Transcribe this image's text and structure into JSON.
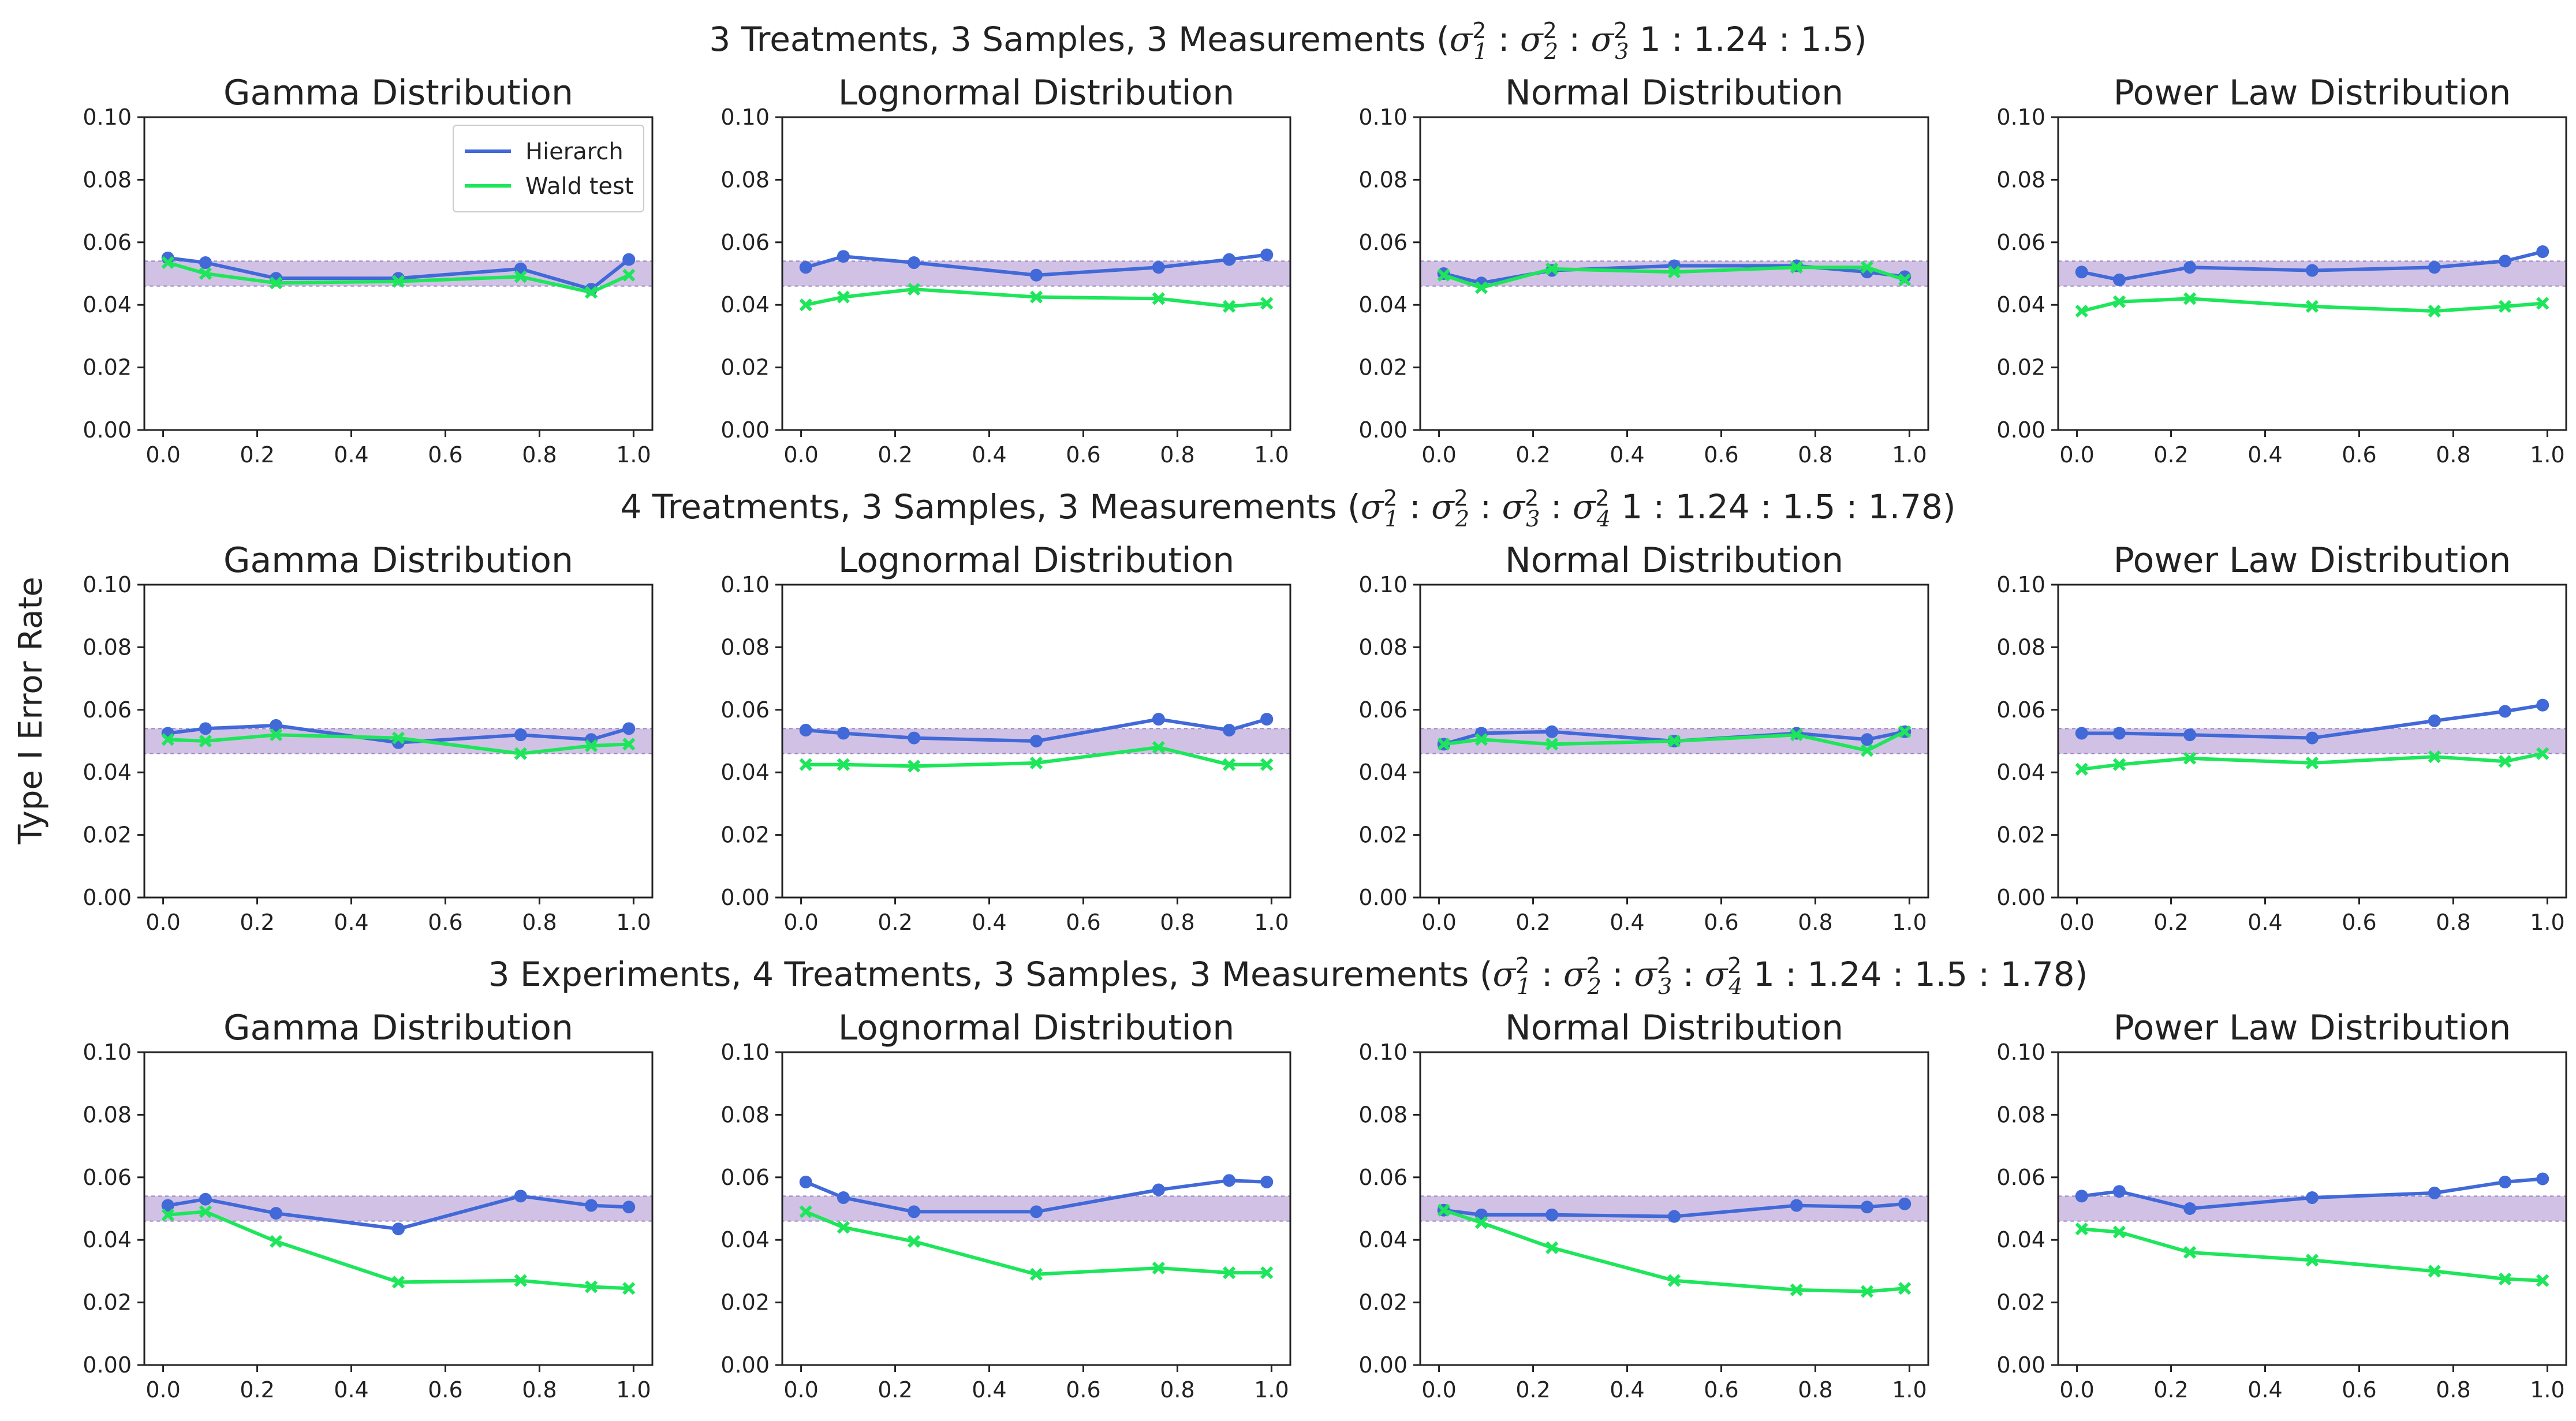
{
  "figure": {
    "ylabel": "Type I Error Rate",
    "row_titles": [
      {
        "prefix": "3 Treatments, 3 Samples, 3 Measurements (",
        "vars": [
          "1",
          "2",
          "3"
        ],
        "ratio": "1 : 1.24 : 1.5"
      },
      {
        "prefix": "4 Treatments, 3 Samples, 3 Measurements (",
        "vars": [
          "1",
          "2",
          "3",
          "4"
        ],
        "ratio": "1 : 1.24 : 1.5 : 1.78"
      },
      {
        "prefix": "3 Experiments, 4 Treatments, 3 Samples, 3 Measurements (",
        "vars": [
          "1",
          "2",
          "3",
          "4"
        ],
        "ratio": "1 : 1.24 : 1.5 : 1.78"
      }
    ],
    "legend": {
      "items": [
        "Hierarch",
        "Wald test"
      ],
      "location": "upper right of first panel"
    },
    "colors": {
      "hierarch": "#4169d8",
      "wald": "#1ee65a",
      "band": "#b39ad4",
      "band_edge": "#9a86c0"
    }
  },
  "chart_data": [
    {
      "type": "line",
      "row": 0,
      "title": "Gamma Distribution",
      "xlim": [
        -0.04,
        1.04
      ],
      "ylim": [
        0,
        0.1
      ],
      "x": [
        0.01,
        0.09,
        0.24,
        0.5,
        0.76,
        0.91,
        0.99
      ],
      "band": [
        0.046,
        0.054
      ],
      "series": [
        {
          "name": "Hierarch",
          "values": [
            0.055,
            0.0535,
            0.0485,
            0.0485,
            0.0515,
            0.045,
            0.0545
          ]
        },
        {
          "name": "Wald test",
          "values": [
            0.0535,
            0.05,
            0.047,
            0.0475,
            0.049,
            0.044,
            0.0495
          ]
        }
      ]
    },
    {
      "type": "line",
      "row": 0,
      "title": "Lognormal Distribution",
      "xlim": [
        -0.04,
        1.04
      ],
      "ylim": [
        0,
        0.1
      ],
      "x": [
        0.01,
        0.09,
        0.24,
        0.5,
        0.76,
        0.91,
        0.99
      ],
      "band": [
        0.046,
        0.054
      ],
      "series": [
        {
          "name": "Hierarch",
          "values": [
            0.052,
            0.0555,
            0.0535,
            0.0495,
            0.052,
            0.0545,
            0.056
          ]
        },
        {
          "name": "Wald test",
          "values": [
            0.04,
            0.0425,
            0.045,
            0.0425,
            0.042,
            0.0395,
            0.0405
          ]
        }
      ]
    },
    {
      "type": "line",
      "row": 0,
      "title": "Normal Distribution",
      "xlim": [
        -0.04,
        1.04
      ],
      "ylim": [
        0,
        0.1
      ],
      "x": [
        0.01,
        0.09,
        0.24,
        0.5,
        0.76,
        0.91,
        0.99
      ],
      "band": [
        0.046,
        0.054
      ],
      "series": [
        {
          "name": "Hierarch",
          "values": [
            0.05,
            0.047,
            0.051,
            0.0525,
            0.0525,
            0.0505,
            0.049
          ]
        },
        {
          "name": "Wald test",
          "values": [
            0.0495,
            0.0455,
            0.0515,
            0.0505,
            0.052,
            0.052,
            0.048
          ]
        }
      ]
    },
    {
      "type": "line",
      "row": 0,
      "title": "Power Law Distribution",
      "xlim": [
        -0.04,
        1.04
      ],
      "ylim": [
        0,
        0.1
      ],
      "x": [
        0.01,
        0.09,
        0.24,
        0.5,
        0.76,
        0.91,
        0.99
      ],
      "band": [
        0.046,
        0.054
      ],
      "series": [
        {
          "name": "Hierarch",
          "values": [
            0.0505,
            0.048,
            0.052,
            0.051,
            0.052,
            0.054,
            0.057
          ]
        },
        {
          "name": "Wald test",
          "values": [
            0.038,
            0.041,
            0.042,
            0.0395,
            0.038,
            0.0395,
            0.0405
          ]
        }
      ]
    },
    {
      "type": "line",
      "row": 1,
      "title": "Gamma Distribution",
      "xlim": [
        -0.04,
        1.04
      ],
      "ylim": [
        0,
        0.1
      ],
      "x": [
        0.01,
        0.09,
        0.24,
        0.5,
        0.76,
        0.91,
        0.99
      ],
      "band": [
        0.046,
        0.054
      ],
      "series": [
        {
          "name": "Hierarch",
          "values": [
            0.0525,
            0.054,
            0.055,
            0.0495,
            0.052,
            0.0505,
            0.054
          ]
        },
        {
          "name": "Wald test",
          "values": [
            0.0505,
            0.05,
            0.052,
            0.051,
            0.046,
            0.0485,
            0.049
          ]
        }
      ]
    },
    {
      "type": "line",
      "row": 1,
      "title": "Lognormal Distribution",
      "xlim": [
        -0.04,
        1.04
      ],
      "ylim": [
        0,
        0.1
      ],
      "x": [
        0.01,
        0.09,
        0.24,
        0.5,
        0.76,
        0.91,
        0.99
      ],
      "band": [
        0.046,
        0.054
      ],
      "series": [
        {
          "name": "Hierarch",
          "values": [
            0.0535,
            0.0525,
            0.051,
            0.05,
            0.057,
            0.0535,
            0.057
          ]
        },
        {
          "name": "Wald test",
          "values": [
            0.0425,
            0.0425,
            0.042,
            0.043,
            0.048,
            0.0425,
            0.0425
          ]
        }
      ]
    },
    {
      "type": "line",
      "row": 1,
      "title": "Normal Distribution",
      "xlim": [
        -0.04,
        1.04
      ],
      "ylim": [
        0,
        0.1
      ],
      "x": [
        0.01,
        0.09,
        0.24,
        0.5,
        0.76,
        0.91,
        0.99
      ],
      "band": [
        0.046,
        0.054
      ],
      "series": [
        {
          "name": "Hierarch",
          "values": [
            0.049,
            0.0525,
            0.053,
            0.05,
            0.0525,
            0.0505,
            0.053
          ]
        },
        {
          "name": "Wald test",
          "values": [
            0.049,
            0.0505,
            0.049,
            0.05,
            0.052,
            0.047,
            0.053
          ]
        }
      ]
    },
    {
      "type": "line",
      "row": 1,
      "title": "Power Law Distribution",
      "xlim": [
        -0.04,
        1.04
      ],
      "ylim": [
        0,
        0.1
      ],
      "x": [
        0.01,
        0.09,
        0.24,
        0.5,
        0.76,
        0.91,
        0.99
      ],
      "band": [
        0.046,
        0.054
      ],
      "series": [
        {
          "name": "Hierarch",
          "values": [
            0.0525,
            0.0525,
            0.052,
            0.051,
            0.0565,
            0.0595,
            0.0615
          ]
        },
        {
          "name": "Wald test",
          "values": [
            0.041,
            0.0425,
            0.0445,
            0.043,
            0.045,
            0.0435,
            0.046
          ]
        }
      ]
    },
    {
      "type": "line",
      "row": 2,
      "title": "Gamma Distribution",
      "xlim": [
        -0.04,
        1.04
      ],
      "ylim": [
        0,
        0.1
      ],
      "x": [
        0.01,
        0.09,
        0.24,
        0.5,
        0.76,
        0.91,
        0.99
      ],
      "band": [
        0.046,
        0.054
      ],
      "series": [
        {
          "name": "Hierarch",
          "values": [
            0.051,
            0.053,
            0.0485,
            0.0435,
            0.054,
            0.051,
            0.0505
          ]
        },
        {
          "name": "Wald test",
          "values": [
            0.048,
            0.049,
            0.0395,
            0.0265,
            0.027,
            0.025,
            0.0245
          ]
        }
      ]
    },
    {
      "type": "line",
      "row": 2,
      "title": "Lognormal Distribution",
      "xlim": [
        -0.04,
        1.04
      ],
      "ylim": [
        0,
        0.1
      ],
      "x": [
        0.01,
        0.09,
        0.24,
        0.5,
        0.76,
        0.91,
        0.99
      ],
      "band": [
        0.046,
        0.054
      ],
      "series": [
        {
          "name": "Hierarch",
          "values": [
            0.0585,
            0.0535,
            0.049,
            0.049,
            0.056,
            0.059,
            0.0585
          ]
        },
        {
          "name": "Wald test",
          "values": [
            0.049,
            0.044,
            0.0395,
            0.029,
            0.031,
            0.0295,
            0.0295
          ]
        }
      ]
    },
    {
      "type": "line",
      "row": 2,
      "title": "Normal Distribution",
      "xlim": [
        -0.04,
        1.04
      ],
      "ylim": [
        0,
        0.1
      ],
      "x": [
        0.01,
        0.09,
        0.24,
        0.5,
        0.76,
        0.91,
        0.99
      ],
      "band": [
        0.046,
        0.054
      ],
      "series": [
        {
          "name": "Hierarch",
          "values": [
            0.0495,
            0.048,
            0.048,
            0.0475,
            0.051,
            0.0505,
            0.0515
          ]
        },
        {
          "name": "Wald test",
          "values": [
            0.0495,
            0.0455,
            0.0375,
            0.027,
            0.024,
            0.0235,
            0.0245
          ]
        }
      ]
    },
    {
      "type": "line",
      "row": 2,
      "title": "Power Law Distribution",
      "xlim": [
        -0.04,
        1.04
      ],
      "ylim": [
        0,
        0.1
      ],
      "x": [
        0.01,
        0.09,
        0.24,
        0.5,
        0.76,
        0.91,
        0.99
      ],
      "band": [
        0.046,
        0.054
      ],
      "series": [
        {
          "name": "Hierarch",
          "values": [
            0.054,
            0.0555,
            0.05,
            0.0535,
            0.055,
            0.0585,
            0.0595
          ]
        },
        {
          "name": "Wald test",
          "values": [
            0.0435,
            0.0425,
            0.036,
            0.0335,
            0.03,
            0.0275,
            0.027
          ]
        }
      ]
    }
  ]
}
